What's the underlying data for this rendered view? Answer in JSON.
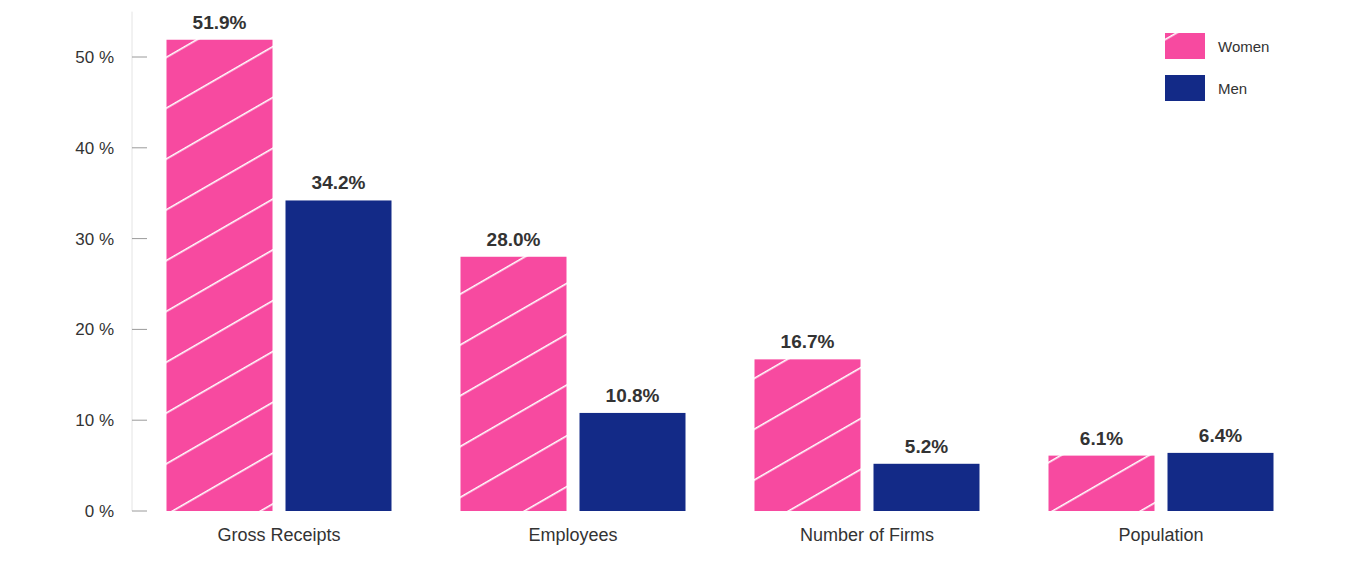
{
  "chart_data": {
    "type": "bar",
    "categories": [
      "Gross Receipts",
      "Employees",
      "Number of Firms",
      "Population"
    ],
    "series": [
      {
        "name": "Women",
        "color": "#f74aa0",
        "values": [
          51.9,
          28.0,
          16.7,
          6.1
        ],
        "value_labels": [
          "51.9%",
          "28.0%",
          "16.7%",
          "6.1%"
        ]
      },
      {
        "name": "Men",
        "color": "#132a87",
        "values": [
          34.2,
          10.8,
          5.2,
          6.4
        ],
        "value_labels": [
          "34.2%",
          "10.8%",
          "5.2%",
          "6.4%"
        ]
      }
    ],
    "ylim": [
      0,
      55
    ],
    "yticks": [
      {
        "value": 0,
        "label": "0 %"
      },
      {
        "value": 10,
        "label": "10 %"
      },
      {
        "value": 20,
        "label": "20 %"
      },
      {
        "value": 30,
        "label": "30 %"
      },
      {
        "value": 40,
        "label": "40 %"
      },
      {
        "value": 50,
        "label": "50 %"
      }
    ],
    "grid": false,
    "legend": "top-right",
    "data_labels": true
  }
}
